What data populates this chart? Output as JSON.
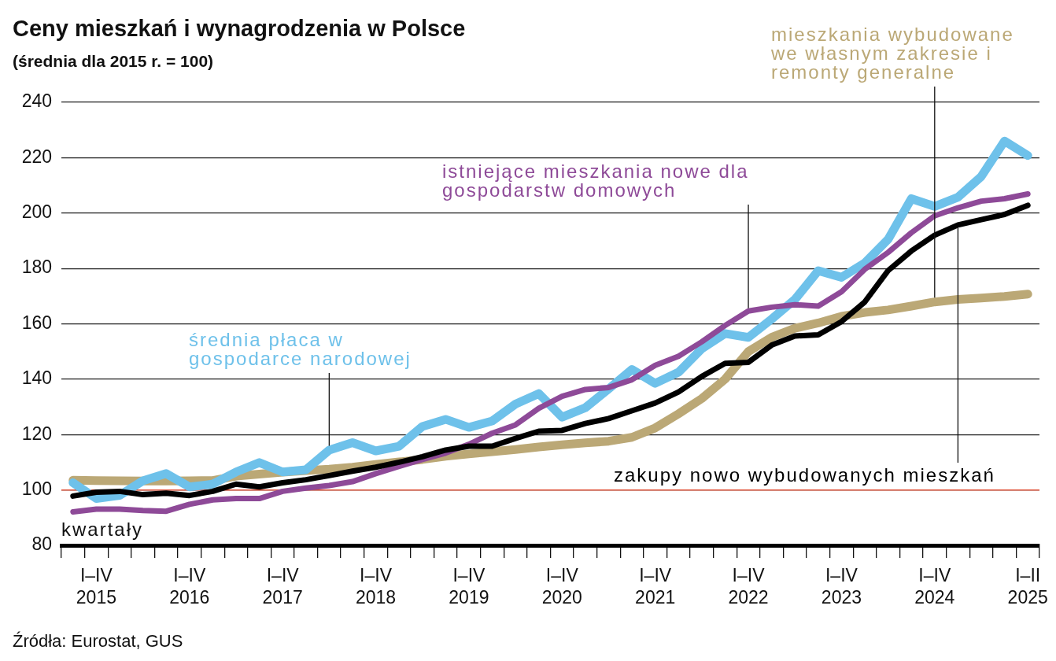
{
  "chart_data": {
    "type": "line",
    "title": "Ceny mieszkań i wynagrodzenia w Polsce",
    "subtitle": "(średnia dla 2015 r. = 100)",
    "xlabel": "kwartały",
    "annotations": [
      "Źródła: Eurostat, GUS"
    ],
    "categories": [
      null,
      "I–IV 2015",
      null,
      null,
      null,
      "I–IV 2016",
      null,
      null,
      null,
      "I–IV 2017",
      null,
      null,
      null,
      "I–IV 2018",
      null,
      null,
      null,
      "I–IV 2019",
      null,
      null,
      null,
      "I–IV 2020",
      null,
      null,
      null,
      "I–IV 2021",
      null,
      null,
      null,
      "I–IV 2022",
      null,
      null,
      null,
      "I–IV 2023",
      null,
      null,
      null,
      "I–IV 2024",
      null,
      null,
      null,
      "I–II 2025"
    ],
    "series": [
      {
        "name": "mieszkania wybudowane we własnym zakresie i remonty generalne",
        "color": "#bba876",
        "values": [
          103.5,
          103.4,
          103.3,
          103.2,
          103.2,
          103.3,
          103.4,
          105,
          105.7,
          106.4,
          107,
          107.5,
          108.2,
          109.2,
          110.1,
          111,
          112.2,
          113,
          113.8,
          114.6,
          115.5,
          116.3,
          117,
          117.6,
          119,
          122.4,
          127.5,
          133,
          140,
          150,
          155.1,
          158.4,
          160.3,
          162.7,
          164.1,
          165,
          166.4,
          167.9,
          168.8,
          169.3,
          169.9,
          170.7
        ]
      },
      {
        "name": "średnia płaca w gospodarce narodowej",
        "color": "#6ec1ea",
        "values": [
          102.6,
          96.9,
          98,
          103.3,
          105.9,
          101.1,
          102.1,
          106.5,
          109.9,
          106.5,
          107.3,
          114.4,
          117.1,
          114.1,
          115.8,
          122.9,
          125.5,
          122.6,
          124.9,
          131,
          134.8,
          126.3,
          129.7,
          136.5,
          143.5,
          138.5,
          142.5,
          151,
          156.5,
          155.1,
          161.7,
          168.8,
          179.2,
          176.8,
          182,
          190.5,
          205.2,
          202.4,
          205.7,
          213.2,
          226,
          220.8
        ]
      },
      {
        "name": "istniejące mieszkania nowe dla gospodarstw domowych",
        "color": "#8e4a98",
        "values": [
          92.1,
          93.1,
          93.1,
          92.6,
          92.3,
          94.8,
          96.4,
          96.9,
          96.9,
          99.5,
          100.7,
          101.6,
          103,
          105.9,
          108.5,
          111,
          113.3,
          116.5,
          120.5,
          123.5,
          129.5,
          133.8,
          136.3,
          137,
          139.8,
          145,
          148.3,
          153.5,
          159.4,
          164.6,
          166,
          166.9,
          166.4,
          171.6,
          179.7,
          185.8,
          192.9,
          199,
          201.9,
          204.3,
          205.2,
          206.9
        ]
      },
      {
        "name": "zakupy nowo wybudowanych mieszkań",
        "color": "#000000",
        "values": [
          97.8,
          99.2,
          99.5,
          98.3,
          98.8,
          98,
          99.5,
          102.1,
          101.1,
          102.6,
          103.7,
          105.2,
          106.8,
          108.2,
          110,
          112,
          114.4,
          115.8,
          115.8,
          118.6,
          121.2,
          121.5,
          124,
          125.8,
          128.6,
          131.4,
          135.4,
          141,
          145.7,
          146.1,
          152.3,
          155.6,
          156,
          160.8,
          167.9,
          179.2,
          186.3,
          192,
          195.7,
          197.6,
          199.5,
          202.8
        ]
      }
    ],
    "ylim": [
      80,
      240
    ],
    "yticks": [
      80,
      100,
      120,
      140,
      160,
      180,
      200,
      220,
      240
    ],
    "ref_lines": [
      {
        "axis": "y",
        "value": 100,
        "color": "#e0533a"
      }
    ],
    "grid": "y",
    "legend": false,
    "marker": "none",
    "line_style": "solid"
  }
}
